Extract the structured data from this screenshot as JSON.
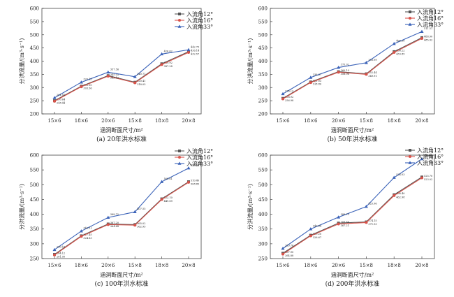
{
  "figure": {
    "ylabel": "分洪流量/(m³·s⁻¹)",
    "xlabel": "涵洞断面尺寸/m²"
  },
  "colors": {
    "s12": "#555555",
    "s16": "#d9534a",
    "s33": "#3a62b8"
  },
  "chart_data": [
    {
      "type": "line",
      "title": "(a) 20年洪水标准",
      "categories": [
        "15×6",
        "18×6",
        "20×6",
        "15×8",
        "18×8",
        "20×8"
      ],
      "ylim": [
        200,
        600
      ],
      "yticks": [
        200,
        250,
        300,
        350,
        400,
        450,
        500,
        550,
        600
      ],
      "series": [
        {
          "name": "入流角12°",
          "values": [
            250,
            305,
            345,
            320,
            390,
            436
          ],
          "labels": [
            "250.64",
            "305.10",
            "345.05",
            "320.41",
            "389.92",
            "436.14"
          ]
        },
        {
          "name": "入流角16°",
          "values": [
            248,
            303,
            343,
            318,
            387,
            433
          ],
          "labels": [
            "248.44",
            "303.56",
            "343.12",
            "318.05",
            "387.28",
            "432.57"
          ]
        },
        {
          "name": "入流角33°",
          "values": [
            261,
            320,
            358,
            341,
            427,
            443
          ],
          "labels": [
            "261.02",
            "320.15",
            "357.56",
            "340.71",
            "426.62",
            "442.75"
          ]
        }
      ]
    },
    {
      "type": "line",
      "title": "(b) 50年洪水标准",
      "categories": [
        "15×6",
        "18×6",
        "20×6",
        "15×8",
        "18×8",
        "20×8"
      ],
      "ylim": [
        200,
        600
      ],
      "yticks": [
        200,
        250,
        300,
        350,
        400,
        450,
        500,
        550,
        600
      ],
      "series": [
        {
          "name": "入流角12°",
          "values": [
            259,
            321,
            360,
            352,
            436,
            489
          ],
          "labels": [
            "258.92",
            "321.03",
            "360.10",
            "352.44",
            "436.22",
            "488.90"
          ]
        },
        {
          "name": "入流角16°",
          "values": [
            257,
            319,
            358,
            350,
            433,
            486
          ],
          "labels": [
            "256.98",
            "318.80",
            "358.06",
            "349.91",
            "433.85",
            "485.92"
          ]
        },
        {
          "name": "入流角33°",
          "values": [
            276,
            338,
            376,
            394,
            466,
            512
          ],
          "labels": [
            "276.12",
            "338.37",
            "375.92",
            "393.99",
            "466.30",
            "511.51"
          ]
        }
      ]
    },
    {
      "type": "line",
      "title": "(c) 100年洪水标准",
      "categories": [
        "15×6",
        "18×6",
        "20×6",
        "15×8",
        "18×8",
        "20×8"
      ],
      "ylim": [
        250,
        600
      ],
      "yticks": [
        250,
        300,
        350,
        400,
        450,
        500,
        550,
        600
      ],
      "series": [
        {
          "name": "入流角12°",
          "values": [
            264,
            327,
            367,
            365,
            452,
            510
          ],
          "labels": [
            "264.12",
            "327.45",
            "367.20",
            "365.02",
            "452.10",
            "510.40"
          ]
        },
        {
          "name": "入流角16°",
          "values": [
            262,
            325,
            365,
            363,
            450,
            508
          ],
          "labels": [
            "261.95",
            "324.83",
            "364.68",
            "362.95",
            "449.89",
            "508.85"
          ]
        },
        {
          "name": "入流角33°",
          "values": [
            280,
            343,
            389,
            408,
            510,
            556
          ],
          "labels": [
            "280.16",
            "342.51",
            "388.72",
            "407.55",
            "509.61",
            "556.34"
          ]
        }
      ]
    },
    {
      "type": "line",
      "title": "(d) 200年洪水标准",
      "categories": [
        "15×6",
        "18×6",
        "20×6",
        "15×8",
        "18×8",
        "20×8"
      ],
      "ylim": [
        250,
        600
      ],
      "yticks": [
        250,
        300,
        350,
        400,
        450,
        500,
        550,
        600
      ],
      "series": [
        {
          "name": "入流角12°",
          "values": [
            268,
            329,
            370,
            374,
            466,
            526
          ],
          "labels": [
            "267.90",
            "329.20",
            "369.88",
            "374.15",
            "466.40",
            "525.70"
          ]
        },
        {
          "name": "入流角16°",
          "values": [
            265,
            327,
            367,
            372,
            463,
            523
          ],
          "labels": [
            "264.88",
            "326.67",
            "367.21",
            "371.93",
            "462.98",
            "523.02"
          ]
        },
        {
          "name": "入流角33°",
          "values": [
            284,
            350,
            390,
            426,
            524,
            587
          ],
          "labels": [
            "283.76",
            "349.84",
            "389.73",
            "425.96",
            "524.03",
            "586.85"
          ]
        }
      ]
    }
  ]
}
